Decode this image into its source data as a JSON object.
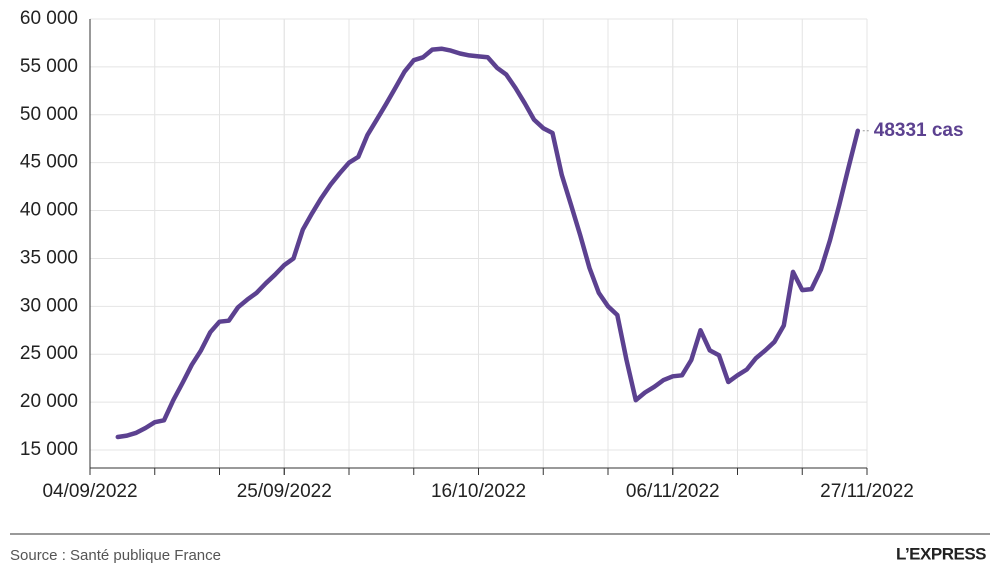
{
  "chart_data": {
    "type": "line",
    "x": [
      "07/09/2022",
      "08/09/2022",
      "09/09/2022",
      "10/09/2022",
      "11/09/2022",
      "12/09/2022",
      "13/09/2022",
      "14/09/2022",
      "15/09/2022",
      "16/09/2022",
      "17/09/2022",
      "18/09/2022",
      "19/09/2022",
      "20/09/2022",
      "21/09/2022",
      "22/09/2022",
      "23/09/2022",
      "24/09/2022",
      "25/09/2022",
      "26/09/2022",
      "27/09/2022",
      "28/09/2022",
      "29/09/2022",
      "30/09/2022",
      "01/10/2022",
      "02/10/2022",
      "03/10/2022",
      "04/10/2022",
      "05/10/2022",
      "06/10/2022",
      "07/10/2022",
      "08/10/2022",
      "09/10/2022",
      "10/10/2022",
      "11/10/2022",
      "12/10/2022",
      "13/10/2022",
      "14/10/2022",
      "15/10/2022",
      "16/10/2022",
      "17/10/2022",
      "18/10/2022",
      "19/10/2022",
      "20/10/2022",
      "21/10/2022",
      "22/10/2022",
      "23/10/2022",
      "24/10/2022",
      "25/10/2022",
      "26/10/2022",
      "27/10/2022",
      "28/10/2022",
      "29/10/2022",
      "30/10/2022",
      "31/10/2022",
      "01/11/2022",
      "02/11/2022",
      "03/11/2022",
      "04/11/2022",
      "05/11/2022",
      "06/11/2022",
      "07/11/2022",
      "08/11/2022",
      "09/11/2022",
      "10/11/2022",
      "11/11/2022",
      "12/11/2022",
      "13/11/2022",
      "14/11/2022",
      "15/11/2022",
      "16/11/2022",
      "17/11/2022",
      "18/11/2022",
      "19/11/2022",
      "20/11/2022",
      "21/11/2022",
      "22/11/2022",
      "23/11/2022",
      "24/11/2022",
      "25/11/2022",
      "26/11/2022"
    ],
    "values": [
      16360,
      16500,
      16800,
      17300,
      17900,
      18100,
      20200,
      22000,
      23900,
      25400,
      27300,
      28400,
      28500,
      29900,
      30700,
      31400,
      32400,
      33300,
      34300,
      35000,
      38000,
      39700,
      41300,
      42700,
      43900,
      45000,
      45600,
      47900,
      49500,
      51100,
      52800,
      54500,
      55700,
      56000,
      56800,
      56900,
      56700,
      56400,
      56200,
      56100,
      56000,
      54900,
      54200,
      52800,
      51200,
      49500,
      48600,
      48100,
      43700,
      40600,
      37400,
      34000,
      31400,
      30000,
      29100,
      24400,
      20200,
      21000,
      21600,
      22300,
      22700,
      22800,
      24400,
      27500,
      25400,
      24900,
      22100,
      22800,
      23400,
      24600,
      25400,
      26300,
      28000,
      33600,
      31700,
      31800,
      33800,
      36900,
      40600,
      44500,
      48331
    ],
    "value_labels": [
      null,
      null,
      null,
      null,
      null,
      null,
      null,
      null,
      null,
      null,
      null,
      null,
      null,
      null,
      null,
      null,
      null,
      null,
      null,
      null,
      null,
      null,
      null,
      null,
      null,
      null,
      null,
      null,
      null,
      null,
      null,
      null,
      null,
      null,
      null,
      null,
      null,
      null,
      null,
      null,
      null,
      null,
      null,
      null,
      null,
      null,
      null,
      null,
      null,
      null,
      null,
      null,
      null,
      null,
      null,
      null,
      null,
      null,
      null,
      null,
      null,
      null,
      null,
      null,
      null,
      null,
      null,
      null,
      null,
      null,
      null,
      null,
      null,
      null,
      null,
      null,
      null,
      null,
      null,
      null,
      "48331 cas"
    ],
    "color": "#5c4190",
    "xlim": [
      "04/09/2022",
      "27/11/2022"
    ],
    "xticks": [
      "04/09/2022",
      "25/09/2022",
      "16/10/2022",
      "06/11/2022",
      "27/11/2022"
    ],
    "xgrid_step_days": 7,
    "ylim": [
      15000,
      60000
    ],
    "yticks": [
      {
        "value": 15000,
        "label": "15 000"
      },
      {
        "value": 20000,
        "label": "20 000"
      },
      {
        "value": 25000,
        "label": "25 000"
      },
      {
        "value": 30000,
        "label": "30 000"
      },
      {
        "value": 35000,
        "label": "35 000"
      },
      {
        "value": 40000,
        "label": "40 000"
      },
      {
        "value": 45000,
        "label": "45 000"
      },
      {
        "value": 50000,
        "label": "50 000"
      },
      {
        "value": 55000,
        "label": "55 000"
      },
      {
        "value": 60000,
        "label": "60 000"
      }
    ],
    "grid": true,
    "source": "Source : Santé publique France",
    "logo": "L’EXPRESS"
  }
}
